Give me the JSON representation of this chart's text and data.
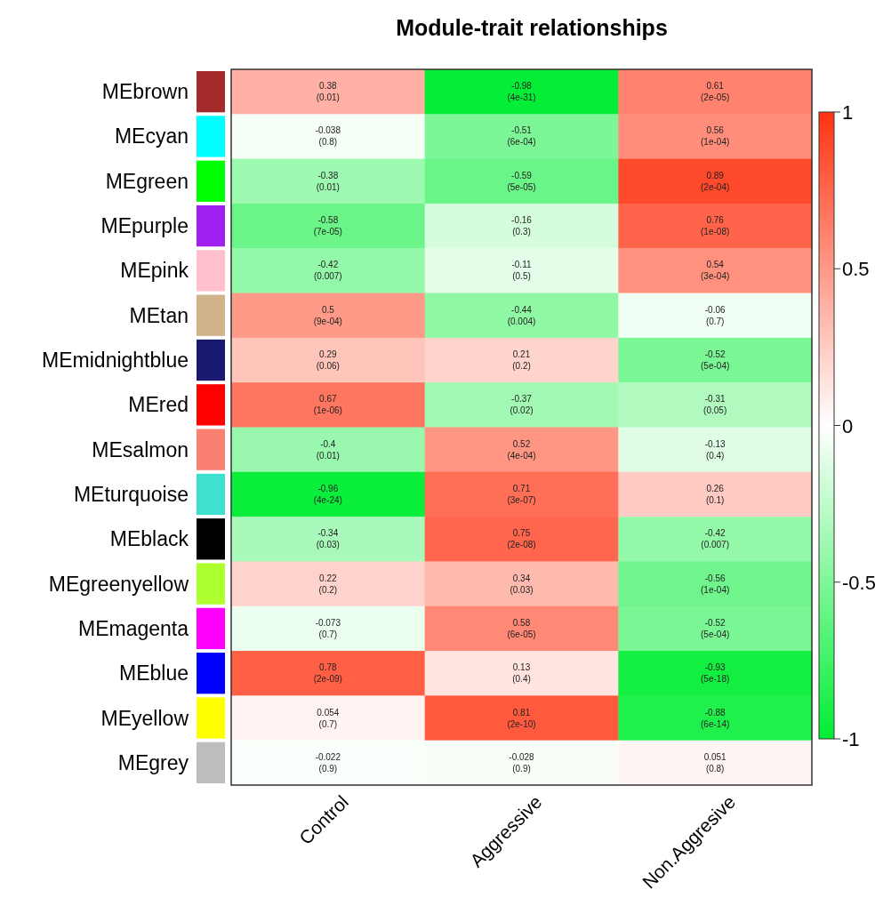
{
  "chart_data": {
    "type": "heatmap",
    "title": "Module-trait relationships",
    "categories": [
      "Control",
      "Aggressive",
      "Non.Aggresive"
    ],
    "y_categories": [
      "MEbrown",
      "MEcyan",
      "MEgreen",
      "MEpurple",
      "MEpink",
      "MEtan",
      "MEmidnightblue",
      "MEred",
      "MEsalmon",
      "MEturquoise",
      "MEblack",
      "MEgreenyellow",
      "MEmagenta",
      "MEblue",
      "MEyellow",
      "MEgrey"
    ],
    "cells": [
      [
        0.38,
        -0.98,
        0.61
      ],
      [
        -0.038,
        -0.51,
        0.56
      ],
      [
        -0.38,
        -0.59,
        0.89
      ],
      [
        -0.58,
        -0.16,
        0.76
      ],
      [
        -0.42,
        -0.11,
        0.54
      ],
      [
        0.5,
        -0.44,
        -0.06
      ],
      [
        0.29,
        0.21,
        -0.52
      ],
      [
        0.67,
        -0.37,
        -0.31
      ],
      [
        -0.4,
        0.52,
        -0.13
      ],
      [
        -0.96,
        0.71,
        0.26
      ],
      [
        -0.34,
        0.75,
        -0.42
      ],
      [
        0.22,
        0.34,
        -0.56
      ],
      [
        -0.073,
        0.58,
        -0.52
      ],
      [
        0.78,
        0.13,
        -0.93
      ],
      [
        0.054,
        0.81,
        -0.88
      ],
      [
        -0.022,
        -0.028,
        0.051
      ]
    ],
    "cell_labels": [
      [
        "0.38\n(0.01)",
        "-0.98\n(4e-31)",
        "0.61\n(2e-05)"
      ],
      [
        "-0.038\n(0.8)",
        "-0.51\n(6e-04)",
        "0.56\n(1e-04)"
      ],
      [
        "-0.38\n(0.01)",
        "-0.59\n(5e-05)",
        "0.89\n(2e-04)"
      ],
      [
        "-0.58\n(7e-05)",
        "-0.16\n(0.3)",
        "0.76\n(1e-08)"
      ],
      [
        "-0.42\n(0.007)",
        "-0.11\n(0.5)",
        "0.54\n(3e-04)"
      ],
      [
        "0.5\n(9e-04)",
        "-0.44\n(0.004)",
        "-0.06\n(0.7)"
      ],
      [
        "0.29\n(0.06)",
        "0.21\n(0.2)",
        "-0.52\n(5e-04)"
      ],
      [
        "0.67\n(1e-06)",
        "-0.37\n(0.02)",
        "-0.31\n(0.05)"
      ],
      [
        "-0.4\n(0.01)",
        "0.52\n(4e-04)",
        "-0.13\n(0.4)"
      ],
      [
        "-0.96\n(4e-24)",
        "0.71\n(3e-07)",
        "0.26\n(0.1)"
      ],
      [
        "-0.34\n(0.03)",
        "0.75\n(2e-08)",
        "-0.42\n(0.007)"
      ],
      [
        "0.22\n(0.2)",
        "0.34\n(0.03)",
        "-0.56\n(1e-04)"
      ],
      [
        "-0.073\n(0.7)",
        "0.58\n(6e-05)",
        "-0.52\n(5e-04)"
      ],
      [
        "0.78\n(2e-09)",
        "0.13\n(0.4)",
        "-0.93\n(5e-18)"
      ],
      [
        "0.054\n(0.7)",
        "0.81\n(2e-10)",
        "-0.88\n(6e-14)"
      ],
      [
        "-0.022\n(0.9)",
        "-0.028\n(0.9)",
        "0.051\n(0.8)"
      ]
    ],
    "clim": [
      -1,
      1
    ],
    "cticks": [
      -1,
      -0.5,
      0,
      0.5,
      1
    ]
  }
}
